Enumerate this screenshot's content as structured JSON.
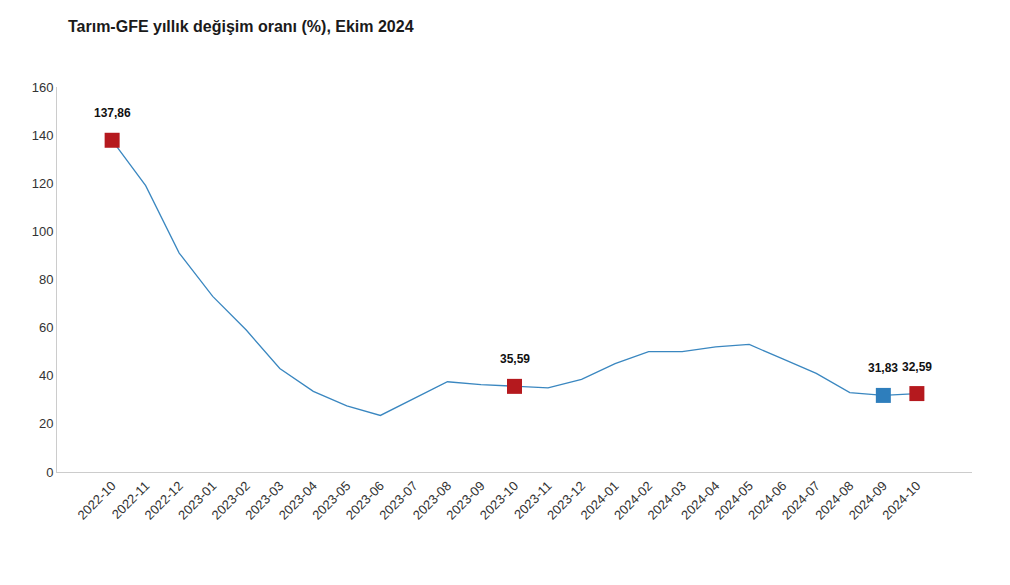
{
  "chart_data": {
    "type": "line",
    "title": "Tarım-GFE yıllık değişim oranı (%), Ekim 2024",
    "categories": [
      "2022-10",
      "2022-11",
      "2022-12",
      "2023-01",
      "2023-02",
      "2023-03",
      "2023-04",
      "2023-05",
      "2023-06",
      "2023-07",
      "2023-08",
      "2023-09",
      "2023-10",
      "2023-11",
      "2023-12",
      "2024-01",
      "2024-02",
      "2024-03",
      "2024-04",
      "2024-05",
      "2024-06",
      "2024-07",
      "2024-08",
      "2024-09",
      "2024-10"
    ],
    "values": [
      137.86,
      119,
      91,
      73,
      59,
      43,
      33.5,
      27.5,
      23.5,
      30.5,
      37.5,
      36.3,
      35.59,
      35,
      38.5,
      45,
      50,
      50,
      52,
      53,
      47,
      41,
      33,
      31.83,
      32.59
    ],
    "color": "#3a87c0",
    "ylim": [
      0,
      160
    ],
    "yticks": [
      0,
      20,
      40,
      60,
      80,
      100,
      120,
      140,
      160
    ],
    "grid": false,
    "annotations": [
      {
        "x": "2022-10",
        "value": 137.86,
        "label": "137,86",
        "color": "#b5191e",
        "marker": "square"
      },
      {
        "x": "2023-10",
        "value": 35.59,
        "label": "35,59",
        "color": "#b5191e",
        "marker": "square"
      },
      {
        "x": "2024-09",
        "value": 31.83,
        "label": "31,83",
        "color": "#2e7ebc",
        "marker": "square"
      },
      {
        "x": "2024-10",
        "value": 32.59,
        "label": "32,59",
        "color": "#b5191e",
        "marker": "square"
      }
    ]
  }
}
